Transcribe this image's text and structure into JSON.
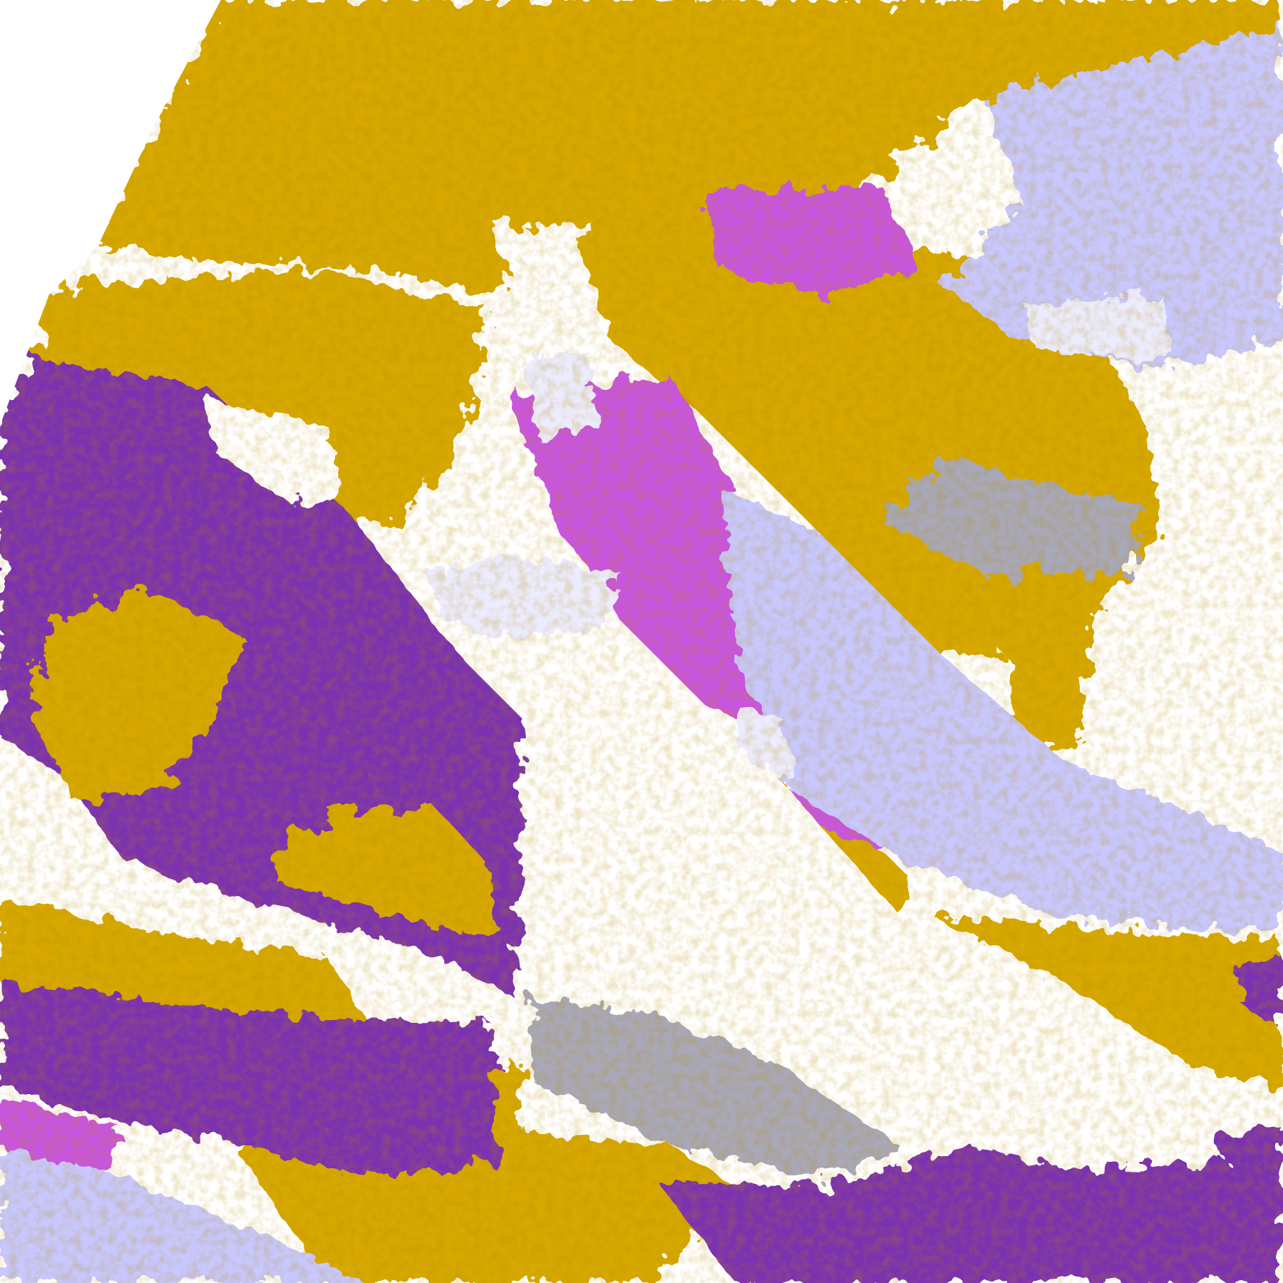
{
  "map": {
    "kind": "satellite cloud classification composite",
    "palette": {
      "background": "#ffffff",
      "gold": "#d6a806",
      "dark_gold": "#b88a10",
      "purple": "#7b30b0",
      "magenta": "#c855e0",
      "lavender": "#c8c8ff",
      "pale_lavender": "#e8e8ff",
      "periwinkle": "#7878f0",
      "gray": "#a0a0a8"
    }
  }
}
